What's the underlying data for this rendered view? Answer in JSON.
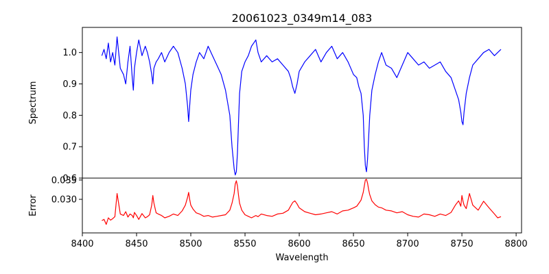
{
  "chart_data": {
    "type": "line",
    "title": "20061023_0349m14_083",
    "xlabel": "Wavelength",
    "xlim": [
      8400,
      8805
    ],
    "xticks": [
      8400,
      8450,
      8500,
      8550,
      8600,
      8650,
      8700,
      8750,
      8800
    ],
    "panels": [
      {
        "name": "spectrum",
        "ylabel": "Spectrum",
        "ylim": [
          0.6,
          1.08
        ],
        "yticks": [
          0.6,
          0.7,
          0.8,
          0.9,
          1.0
        ],
        "ytick_labels": [
          "0.6",
          "0.7",
          "0.8",
          "0.9",
          "1.0"
        ],
        "series": [
          {
            "color": "#0000ff",
            "x": [
              8418,
              8420,
              8422,
              8424,
              8426,
              8428,
              8430,
              8432,
              8435,
              8438,
              8440,
              8442,
              8444,
              8446,
              8447,
              8448,
              8450,
              8452,
              8455,
              8458,
              8460,
              8462,
              8464,
              8465,
              8466,
              8468,
              8470,
              8473,
              8476,
              8480,
              8484,
              8488,
              8492,
              8495,
              8497,
              8498,
              8499,
              8500,
              8502,
              8505,
              8508,
              8512,
              8516,
              8520,
              8524,
              8528,
              8532,
              8536,
              8538,
              8540,
              8541,
              8542,
              8543,
              8544,
              8545,
              8547,
              8550,
              8553,
              8556,
              8560,
              8562,
              8565,
              8570,
              8575,
              8580,
              8585,
              8590,
              8592,
              8594,
              8596,
              8598,
              8600,
              8605,
              8610,
              8615,
              8620,
              8625,
              8630,
              8635,
              8640,
              8645,
              8650,
              8653,
              8655,
              8657,
              8659,
              8660,
              8661,
              8662,
              8663,
              8664,
              8665,
              8667,
              8670,
              8673,
              8676,
              8680,
              8685,
              8690,
              8695,
              8700,
              8705,
              8710,
              8715,
              8720,
              8725,
              8730,
              8735,
              8740,
              8744,
              8747,
              8749,
              8750,
              8751,
              8752,
              8754,
              8757,
              8760,
              8765,
              8770,
              8775,
              8780,
              8783,
              8786
            ],
            "y": [
              0.99,
              1.01,
              0.98,
              1.03,
              0.97,
              1.0,
              0.96,
              1.05,
              0.95,
              0.93,
              0.9,
              0.97,
              1.02,
              0.92,
              0.88,
              0.95,
              1.0,
              1.04,
              0.99,
              1.02,
              1.0,
              0.97,
              0.93,
              0.9,
              0.95,
              0.97,
              0.98,
              1.0,
              0.97,
              1.0,
              1.02,
              1.0,
              0.95,
              0.9,
              0.83,
              0.78,
              0.83,
              0.88,
              0.93,
              0.97,
              1.0,
              0.98,
              1.02,
              0.99,
              0.96,
              0.93,
              0.88,
              0.8,
              0.7,
              0.63,
              0.61,
              0.62,
              0.68,
              0.78,
              0.87,
              0.94,
              0.97,
              0.99,
              1.02,
              1.04,
              1.0,
              0.97,
              0.99,
              0.97,
              0.98,
              0.96,
              0.94,
              0.92,
              0.89,
              0.87,
              0.9,
              0.94,
              0.97,
              0.99,
              1.01,
              0.97,
              1.0,
              1.02,
              0.98,
              1.0,
              0.97,
              0.93,
              0.92,
              0.89,
              0.87,
              0.8,
              0.7,
              0.64,
              0.62,
              0.66,
              0.73,
              0.8,
              0.88,
              0.93,
              0.97,
              1.0,
              0.96,
              0.95,
              0.92,
              0.96,
              1.0,
              0.98,
              0.96,
              0.97,
              0.95,
              0.96,
              0.97,
              0.94,
              0.92,
              0.88,
              0.85,
              0.81,
              0.78,
              0.77,
              0.81,
              0.87,
              0.92,
              0.96,
              0.98,
              1.0,
              1.01,
              0.99,
              1.0,
              1.01
            ]
          }
        ]
      },
      {
        "name": "error",
        "ylabel": "Error",
        "ylim": [
          0.0213,
          0.0355
        ],
        "yticks": [
          0.03,
          0.035
        ],
        "ytick_labels": [
          "0.030",
          "0.035"
        ],
        "series": [
          {
            "color": "#ff0000",
            "x": [
              8418,
              8420,
              8422,
              8424,
              8426,
              8428,
              8430,
              8432,
              8435,
              8438,
              8440,
              8442,
              8444,
              8446,
              8447,
              8448,
              8450,
              8452,
              8455,
              8458,
              8460,
              8462,
              8464,
              8465,
              8466,
              8468,
              8470,
              8473,
              8476,
              8480,
              8484,
              8488,
              8492,
              8495,
              8497,
              8498,
              8499,
              8500,
              8502,
              8505,
              8508,
              8512,
              8516,
              8520,
              8524,
              8528,
              8532,
              8536,
              8538,
              8540,
              8541,
              8542,
              8543,
              8544,
              8545,
              8547,
              8550,
              8553,
              8556,
              8560,
              8562,
              8565,
              8570,
              8575,
              8580,
              8585,
              8590,
              8592,
              8594,
              8596,
              8598,
              8600,
              8605,
              8610,
              8615,
              8620,
              8625,
              8630,
              8635,
              8640,
              8645,
              8650,
              8653,
              8655,
              8657,
              8659,
              8660,
              8661,
              8662,
              8663,
              8664,
              8665,
              8667,
              8670,
              8673,
              8676,
              8680,
              8685,
              8690,
              8695,
              8700,
              8705,
              8710,
              8715,
              8720,
              8725,
              8730,
              8735,
              8740,
              8744,
              8747,
              8749,
              8750,
              8751,
              8752,
              8754,
              8757,
              8760,
              8765,
              8770,
              8775,
              8780,
              8783,
              8786
            ],
            "y": [
              0.0245,
              0.0248,
              0.0235,
              0.0252,
              0.0246,
              0.025,
              0.0255,
              0.0315,
              0.0262,
              0.0258,
              0.0268,
              0.0254,
              0.0262,
              0.0258,
              0.0252,
              0.0266,
              0.0258,
              0.0248,
              0.0263,
              0.0252,
              0.0255,
              0.026,
              0.0285,
              0.031,
              0.029,
              0.0265,
              0.0262,
              0.0258,
              0.0252,
              0.0256,
              0.0262,
              0.0258,
              0.027,
              0.0285,
              0.0305,
              0.0318,
              0.03,
              0.0285,
              0.0275,
              0.0265,
              0.0262,
              0.0256,
              0.0258,
              0.0254,
              0.0256,
              0.0258,
              0.026,
              0.0272,
              0.029,
              0.0315,
              0.034,
              0.0348,
              0.0335,
              0.031,
              0.029,
              0.0272,
              0.026,
              0.0256,
              0.0252,
              0.0258,
              0.0255,
              0.0262,
              0.0258,
              0.0256,
              0.0262,
              0.0264,
              0.0272,
              0.0282,
              0.0292,
              0.0296,
              0.0288,
              0.0278,
              0.0268,
              0.0264,
              0.026,
              0.0262,
              0.0265,
              0.0268,
              0.0262,
              0.027,
              0.0272,
              0.0278,
              0.0282,
              0.029,
              0.0298,
              0.0318,
              0.0335,
              0.035,
              0.0352,
              0.0342,
              0.0325,
              0.0312,
              0.0296,
              0.0286,
              0.028,
              0.0278,
              0.0272,
              0.027,
              0.0265,
              0.0268,
              0.026,
              0.0256,
              0.0254,
              0.0262,
              0.026,
              0.0256,
              0.0262,
              0.0258,
              0.0266,
              0.0285,
              0.0296,
              0.0282,
              0.031,
              0.0295,
              0.0285,
              0.0276,
              0.0315,
              0.0285,
              0.0272,
              0.0295,
              0.0278,
              0.0262,
              0.0252,
              0.0255
            ]
          }
        ]
      }
    ]
  }
}
